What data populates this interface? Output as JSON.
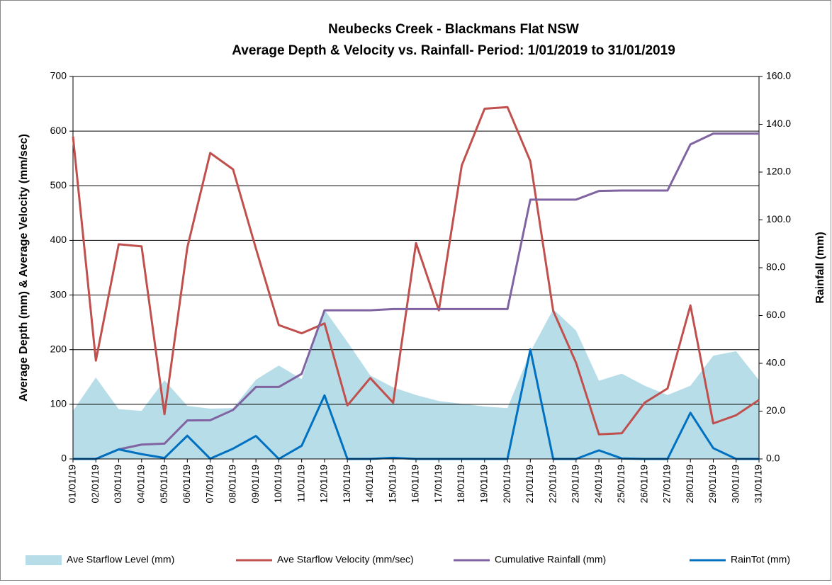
{
  "chart_data": {
    "type": "line",
    "title": [
      "Neubecks Creek - Blackmans Flat NSW",
      "Average Depth & Velocity  vs. Rainfall- Period:  1/01/2019 to 31/01/2019"
    ],
    "y_label": "Average Depth (mm) & Average Velocity (mm/sec)",
    "y2_label": "Rainfall (mm)",
    "categories": [
      "01/01/19",
      "02/01/19",
      "03/01/19",
      "04/01/19",
      "05/01/19",
      "06/01/19",
      "07/01/19",
      "08/01/19",
      "09/01/19",
      "10/01/19",
      "11/01/19",
      "12/01/19",
      "13/01/19",
      "14/01/19",
      "15/01/19",
      "16/01/19",
      "17/01/19",
      "18/01/19",
      "19/01/19",
      "20/01/19",
      "21/01/19",
      "22/01/19",
      "23/01/19",
      "24/01/19",
      "25/01/19",
      "26/01/19",
      "27/01/19",
      "28/01/19",
      "29/01/19",
      "30/01/19",
      "31/01/19"
    ],
    "ylim": [
      0,
      700
    ],
    "yticks": [
      0,
      100,
      200,
      300,
      400,
      500,
      600,
      700
    ],
    "y2lim": [
      0,
      160
    ],
    "y2ticks": [
      {
        "value": 0,
        "label": "0.0"
      },
      {
        "value": 20,
        "label": "20.0"
      },
      {
        "value": 40,
        "label": "40.0"
      },
      {
        "value": 60,
        "label": "60.0"
      },
      {
        "value": 80,
        "label": "80.0"
      },
      {
        "value": 100,
        "label": "100.0"
      },
      {
        "value": 120,
        "label": "120.0"
      },
      {
        "value": 140,
        "label": "140.0"
      },
      {
        "value": 160,
        "label": "160.0"
      }
    ],
    "grid": true,
    "legend": "bottom",
    "series": [
      {
        "name": "Ave Starflow Level (mm)",
        "type": "area",
        "color": "#b7dde8",
        "axis": "y",
        "values": [
          88,
          149,
          91,
          88,
          144,
          97,
          92,
          93,
          145,
          171,
          146,
          273,
          214,
          153,
          131,
          117,
          106,
          101,
          96,
          93,
          196,
          274,
          235,
          143,
          156,
          134,
          117,
          134,
          189,
          197,
          144
        ]
      },
      {
        "name": "Ave Starflow Velocity (mm/sec)",
        "type": "line",
        "color": "#c0504d",
        "axis": "y",
        "values": [
          590,
          180,
          393,
          389,
          82,
          387,
          560,
          530,
          385,
          245,
          230,
          248,
          98,
          148,
          103,
          395,
          272,
          537,
          641,
          644,
          545,
          271,
          176,
          45,
          47,
          103,
          129,
          281,
          65,
          80,
          108
        ]
      },
      {
        "name": "Cumulative Rainfall (mm)",
        "type": "line",
        "color": "#8064a2",
        "axis": "y2",
        "values": [
          0,
          0,
          4,
          6,
          6.4,
          16.1,
          16.2,
          20.5,
          30.1,
          30.1,
          35.6,
          62.2,
          62.2,
          62.2,
          62.7,
          62.7,
          62.7,
          62.7,
          62.7,
          62.7,
          108.5,
          108.5,
          108.5,
          112.1,
          112.3,
          112.3,
          112.3,
          131.6,
          136.1,
          136.1,
          136.1
        ]
      },
      {
        "name": "RainTot (mm)",
        "type": "line",
        "color": "#0070c0",
        "axis": "y2",
        "values": [
          0,
          0,
          4,
          2,
          0.4,
          9.7,
          0.1,
          4.3,
          9.6,
          0,
          5.5,
          26.6,
          0,
          0,
          0.5,
          0,
          0,
          0,
          0,
          0,
          45.8,
          0,
          0,
          3.6,
          0.2,
          0,
          0,
          19.3,
          4.5,
          0,
          0
        ]
      }
    ]
  }
}
